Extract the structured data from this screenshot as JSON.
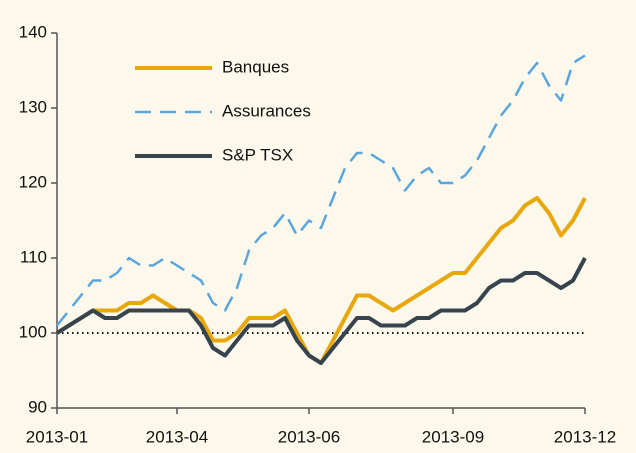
{
  "chart_data": {
    "type": "line",
    "categories": [
      "2013-01",
      null,
      null,
      null,
      null,
      null,
      null,
      null,
      null,
      null,
      "2013-04",
      null,
      null,
      null,
      null,
      null,
      null,
      null,
      null,
      null,
      null,
      "2013-06",
      null,
      null,
      null,
      null,
      null,
      null,
      null,
      null,
      null,
      null,
      null,
      "2013-09",
      null,
      null,
      null,
      null,
      null,
      null,
      null,
      null,
      null,
      null,
      "2013-12"
    ],
    "series": [
      {
        "name": "Banques",
        "color": "#e8a80c",
        "dash": false,
        "values": [
          100,
          101,
          102,
          103,
          103,
          103,
          104,
          104,
          105,
          104,
          103,
          103,
          102,
          99,
          99,
          100,
          102,
          102,
          102,
          103,
          100,
          97,
          96,
          99,
          102,
          105,
          105,
          104,
          103,
          104,
          105,
          106,
          107,
          108,
          108,
          110,
          112,
          114,
          115,
          117,
          118,
          116,
          113,
          115,
          118
        ]
      },
      {
        "name": "Assurances",
        "color": "#5aa6dc",
        "dash": true,
        "values": [
          101,
          103,
          105,
          107,
          107,
          108,
          110,
          109,
          109,
          110,
          109,
          108,
          107,
          104,
          103,
          106,
          111,
          113,
          114,
          116,
          113,
          115,
          114,
          118,
          122,
          124,
          124,
          123,
          122,
          119,
          121,
          122,
          120,
          120,
          121,
          123,
          126,
          129,
          131,
          134,
          136,
          133,
          131,
          136,
          137
        ]
      },
      {
        "name": "S&P TSX",
        "color": "#37444e",
        "dash": false,
        "values": [
          100,
          101,
          102,
          103,
          102,
          102,
          103,
          103,
          103,
          103,
          103,
          103,
          101,
          98,
          97,
          99,
          101,
          101,
          101,
          102,
          99,
          97,
          96,
          98,
          100,
          102,
          102,
          101,
          101,
          101,
          102,
          102,
          103,
          103,
          103,
          104,
          106,
          107,
          107,
          108,
          108,
          107,
          106,
          107,
          110
        ]
      }
    ],
    "ylim": [
      90,
      140
    ],
    "yticks": [
      90,
      100,
      110,
      120,
      130,
      140
    ],
    "reference_line": 100
  }
}
